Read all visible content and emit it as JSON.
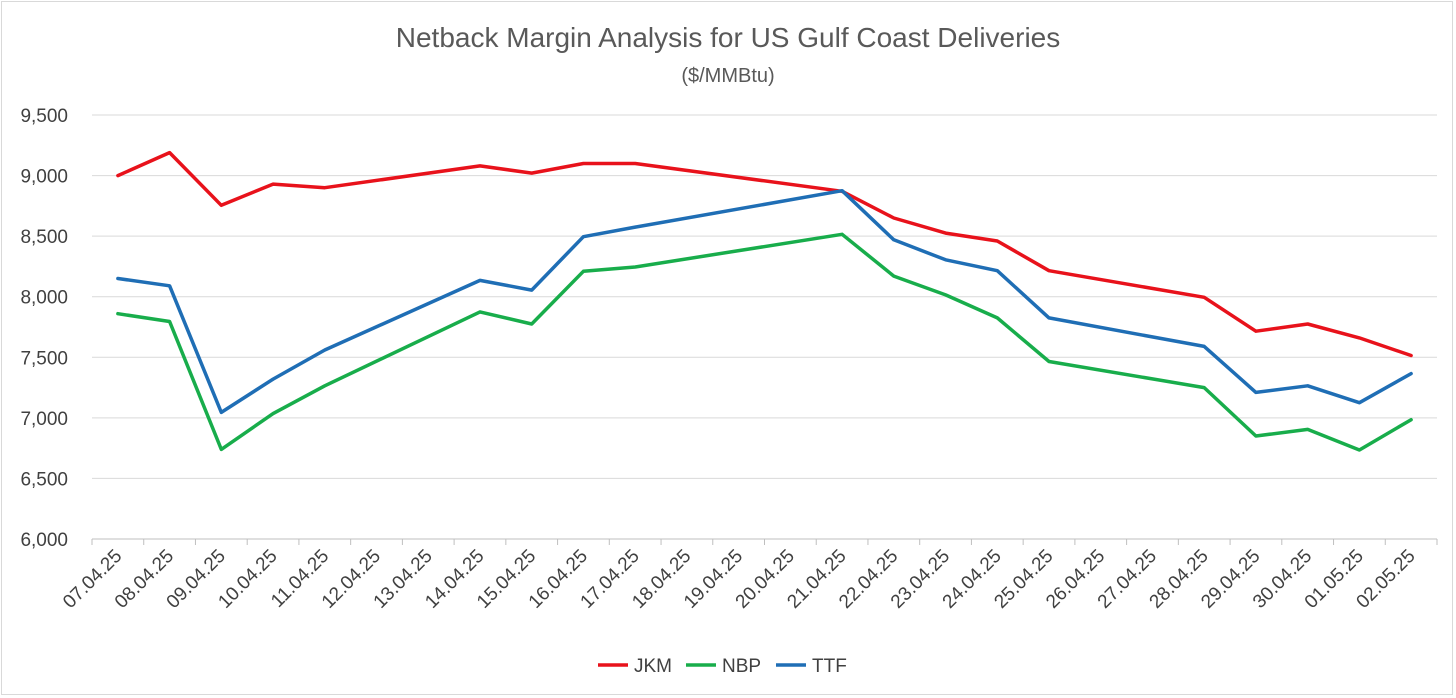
{
  "chart_data": {
    "type": "line",
    "title": "Netback Margin Analysis for US Gulf Coast Deliveries",
    "subtitle": "($/MMBtu)",
    "xlabel": "",
    "ylabel": "",
    "ylim": [
      6000,
      9500
    ],
    "ytick_step": 500,
    "yticks": [
      "6,000",
      "6,500",
      "7,000",
      "7,500",
      "8,000",
      "8,500",
      "9,000",
      "9,500"
    ],
    "grid": true,
    "legend_position": "bottom",
    "categories": [
      "07.04.25",
      "08.04.25",
      "09.04.25",
      "10.04.25",
      "11.04.25",
      "12.04.25",
      "13.04.25",
      "14.04.25",
      "15.04.25",
      "16.04.25",
      "17.04.25",
      "18.04.25",
      "19.04.25",
      "20.04.25",
      "21.04.25",
      "22.04.25",
      "23.04.25",
      "24.04.25",
      "25.04.25",
      "26.04.25",
      "27.04.25",
      "28.04.25",
      "29.04.25",
      "30.04.25",
      "01.05.25",
      "02.05.25"
    ],
    "series": [
      {
        "name": "JKM",
        "color": "#e8121b",
        "values": [
          9000,
          9190,
          8755,
          8930,
          8900,
          null,
          null,
          9080,
          9020,
          9100,
          9100,
          null,
          null,
          null,
          8870,
          8650,
          8525,
          8460,
          8215,
          null,
          null,
          7995,
          7715,
          7775,
          7660,
          7515
        ]
      },
      {
        "name": "NBP",
        "color": "#18ad4b",
        "values": [
          7860,
          7795,
          6740,
          7035,
          7265,
          null,
          null,
          7875,
          7775,
          8210,
          8245,
          null,
          null,
          null,
          8515,
          8170,
          8015,
          7825,
          7465,
          null,
          null,
          7250,
          6850,
          6905,
          6735,
          6985
        ]
      },
      {
        "name": "TTF",
        "color": "#1f6eb5",
        "values": [
          8150,
          8090,
          7045,
          7320,
          7560,
          null,
          null,
          8135,
          8055,
          8495,
          8575,
          null,
          null,
          null,
          8875,
          8470,
          8305,
          8215,
          7825,
          null,
          null,
          7590,
          7210,
          7265,
          7125,
          7365
        ]
      }
    ]
  }
}
